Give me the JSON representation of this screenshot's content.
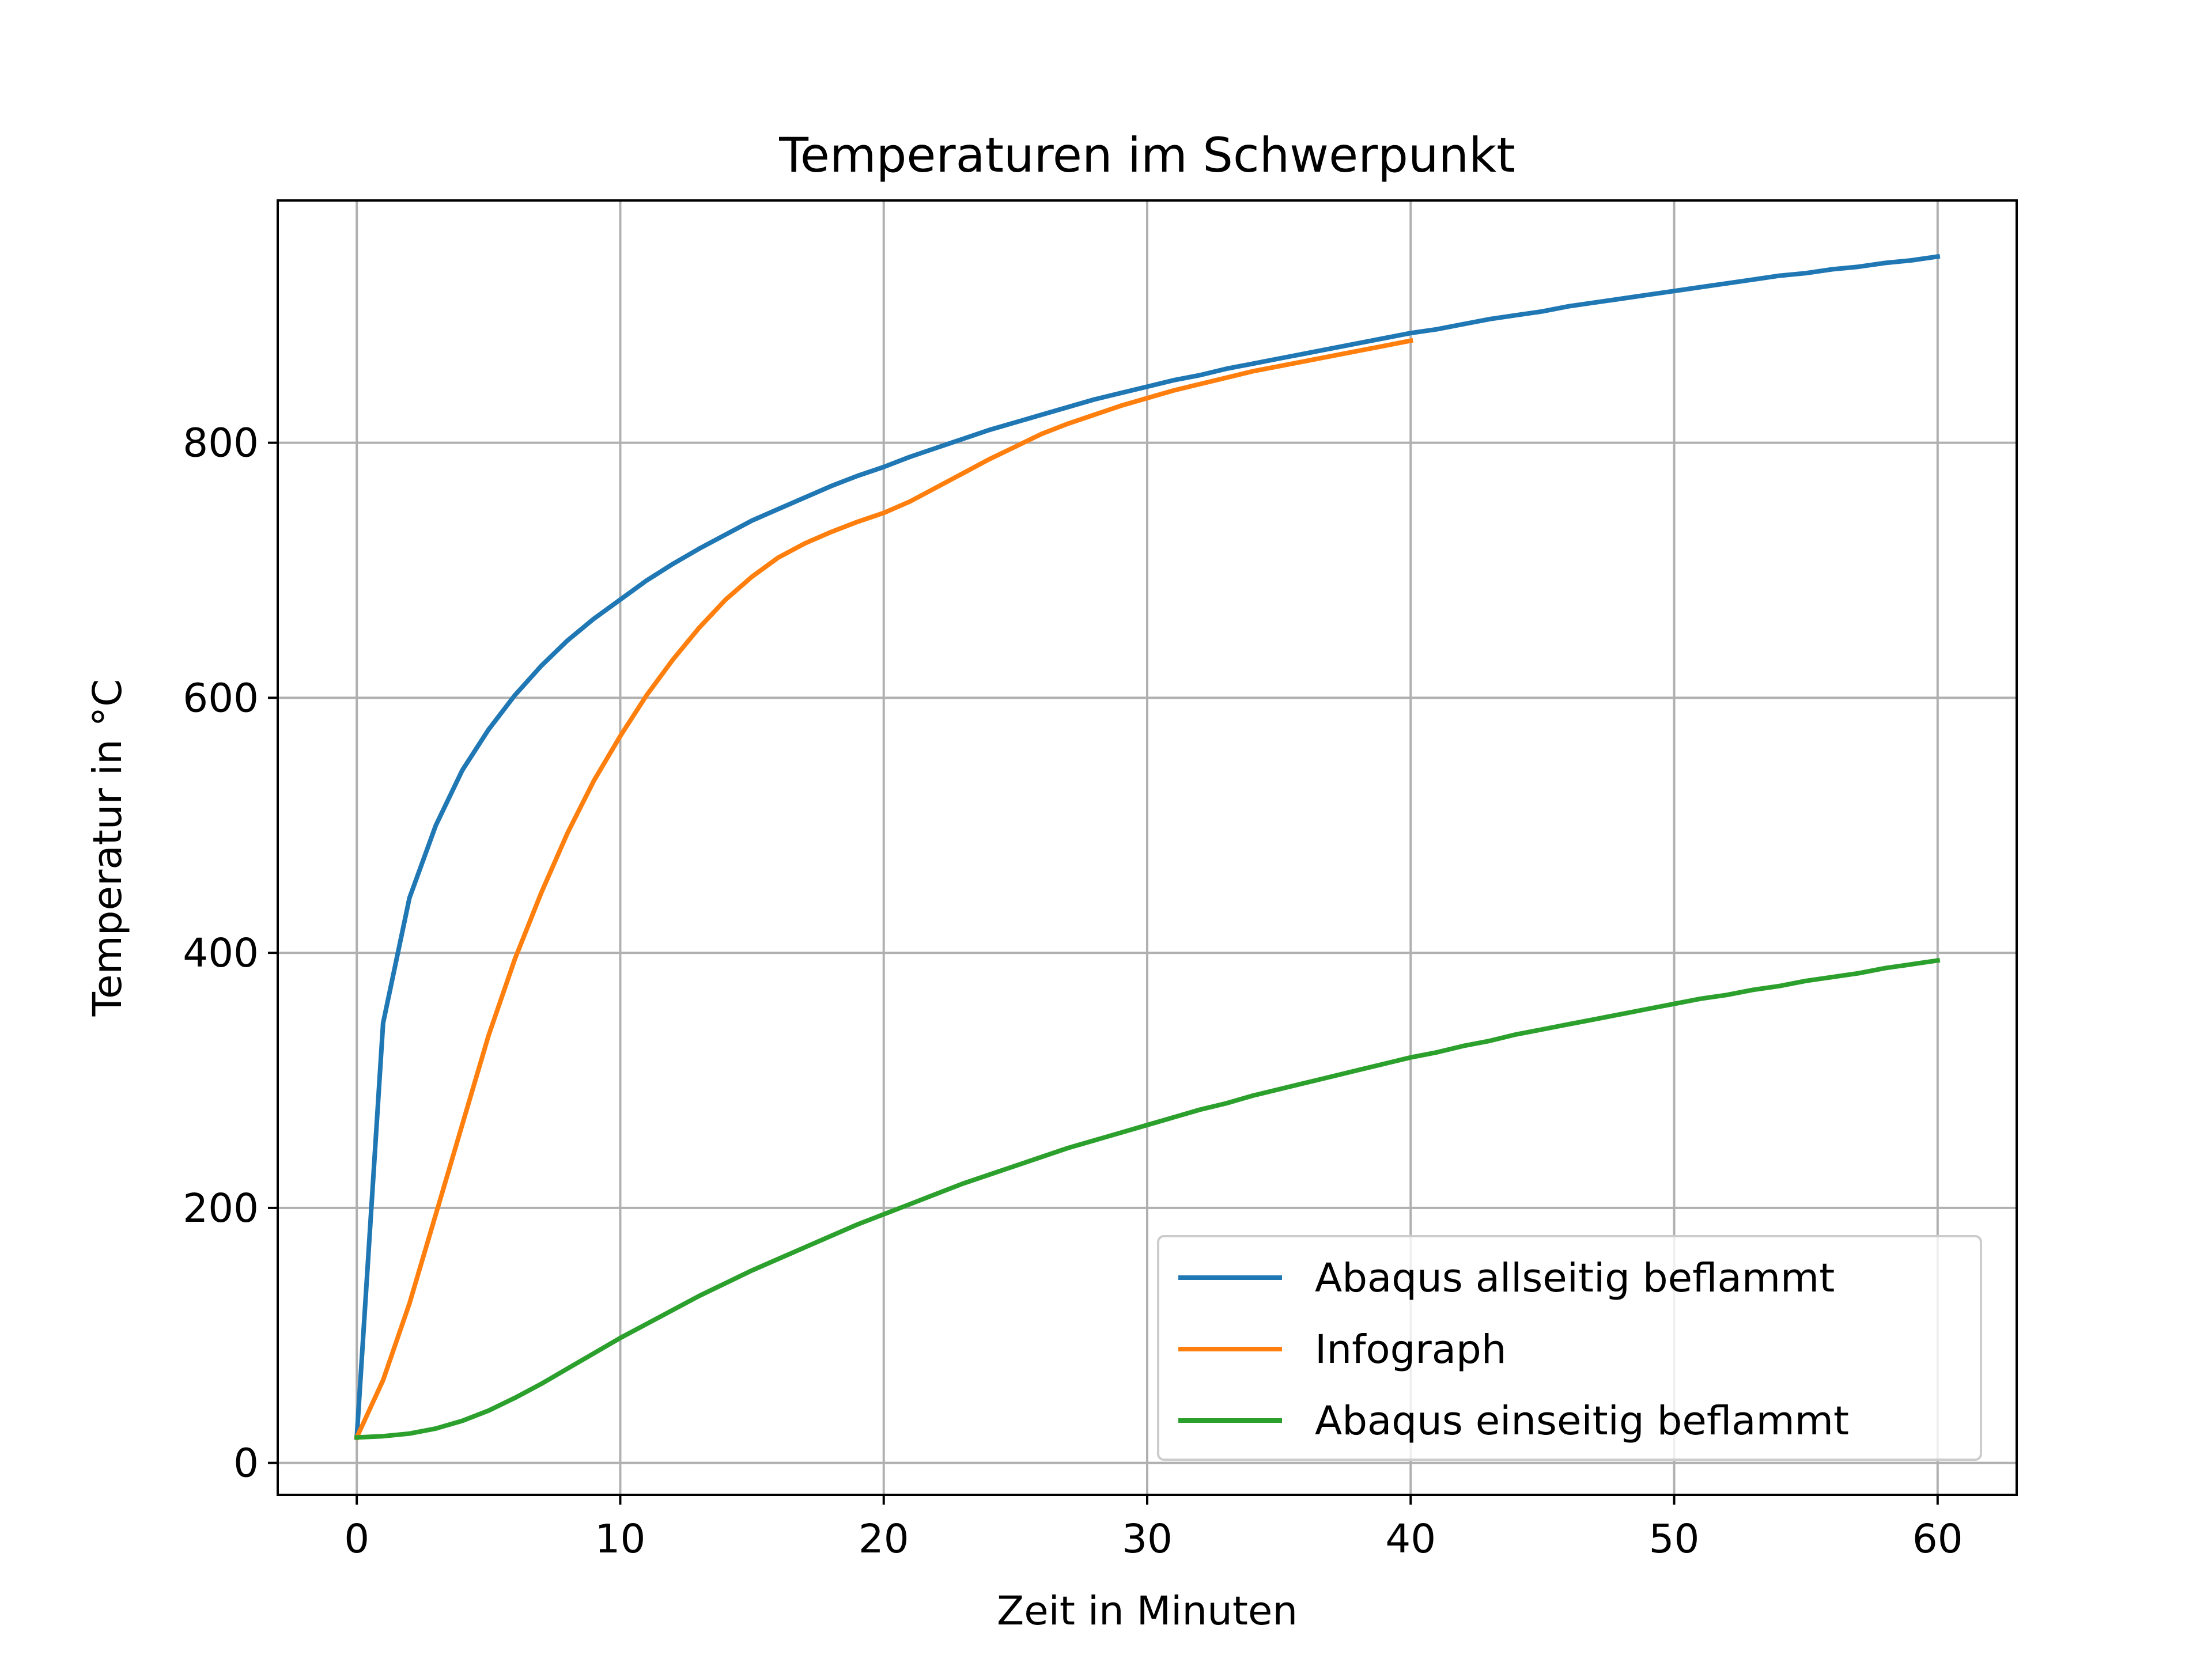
{
  "chart_data": {
    "type": "line",
    "title": "Temperaturen im Schwerpunkt",
    "xlabel": "Zeit in Minuten",
    "ylabel": "Temperatur in °C",
    "xlim": [
      -3,
      63
    ],
    "ylim": [
      -25,
      990
    ],
    "xticks": [
      0,
      10,
      20,
      30,
      40,
      50,
      60
    ],
    "yticks": [
      0,
      200,
      400,
      600,
      800
    ],
    "grid": true,
    "legend_position": "lower-right",
    "series": [
      {
        "name": "Abaqus allseitig beflammt",
        "color": "#1f77b4",
        "x": [
          0,
          1,
          2,
          3,
          4,
          5,
          6,
          7,
          8,
          9,
          10,
          11,
          12,
          13,
          14,
          15,
          16,
          17,
          18,
          19,
          20,
          21,
          22,
          23,
          24,
          25,
          26,
          27,
          28,
          29,
          30,
          31,
          32,
          33,
          34,
          35,
          36,
          37,
          38,
          39,
          40,
          41,
          42,
          43,
          44,
          45,
          46,
          47,
          48,
          49,
          50,
          51,
          52,
          53,
          54,
          55,
          56,
          57,
          58,
          59,
          60
        ],
        "y": [
          20,
          345,
          443,
          500,
          543,
          575,
          602,
          625,
          645,
          662,
          677,
          692,
          705,
          717,
          728,
          739,
          748,
          757,
          766,
          774,
          781,
          789,
          796,
          803,
          810,
          816,
          822,
          828,
          834,
          839,
          844,
          849,
          853,
          858,
          862,
          866,
          870,
          874,
          878,
          882,
          886,
          889,
          893,
          897,
          900,
          903,
          907,
          910,
          913,
          916,
          919,
          922,
          925,
          928,
          931,
          933,
          936,
          938,
          941,
          943,
          946
        ]
      },
      {
        "name": "Infograph",
        "color": "#ff7f0e",
        "x": [
          0,
          1,
          2,
          3,
          4,
          5,
          6,
          7,
          8,
          9,
          10,
          11,
          12,
          13,
          14,
          15,
          16,
          17,
          18,
          19,
          20,
          21,
          22,
          23,
          24,
          25,
          26,
          27,
          28,
          29,
          30,
          31,
          32,
          33,
          34,
          35,
          36,
          37,
          38,
          39,
          40
        ],
        "y": [
          20,
          65,
          125,
          195,
          265,
          335,
          395,
          447,
          494,
          535,
          570,
          602,
          630,
          655,
          677,
          695,
          710,
          721,
          730,
          738,
          745,
          754,
          765,
          776,
          787,
          797,
          807,
          815,
          822,
          829,
          835,
          841,
          846,
          851,
          856,
          860,
          864,
          868,
          872,
          876,
          880
        ]
      },
      {
        "name": "Abaqus einseitig beflammt",
        "color": "#2ca02c",
        "x": [
          0,
          1,
          2,
          3,
          4,
          5,
          6,
          7,
          8,
          9,
          10,
          11,
          12,
          13,
          14,
          15,
          16,
          17,
          18,
          19,
          20,
          21,
          22,
          23,
          24,
          25,
          26,
          27,
          28,
          29,
          30,
          31,
          32,
          33,
          34,
          35,
          36,
          37,
          38,
          39,
          40,
          41,
          42,
          43,
          44,
          45,
          46,
          47,
          48,
          49,
          50,
          51,
          52,
          53,
          54,
          55,
          56,
          57,
          58,
          59,
          60
        ],
        "y": [
          20,
          21,
          23,
          27,
          33,
          41,
          51,
          62,
          74,
          86,
          98,
          109,
          120,
          131,
          141,
          151,
          160,
          169,
          178,
          187,
          195,
          203,
          211,
          219,
          226,
          233,
          240,
          247,
          253,
          259,
          265,
          271,
          277,
          282,
          288,
          293,
          298,
          303,
          308,
          313,
          318,
          322,
          327,
          331,
          336,
          340,
          344,
          348,
          352,
          356,
          360,
          364,
          367,
          371,
          374,
          378,
          381,
          384,
          388,
          391,
          394
        ]
      }
    ]
  }
}
